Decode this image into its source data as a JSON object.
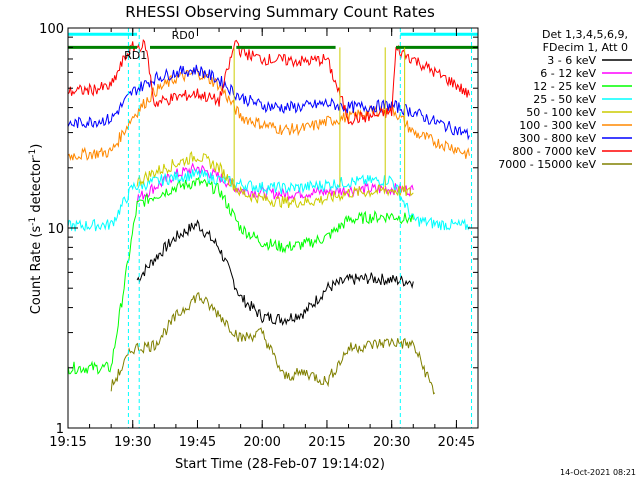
{
  "chart_data": {
    "type": "line",
    "title": "RHESSI Observing Summary Count Rates",
    "xlabel": "Start Time (28-Feb-07 19:14:02)",
    "ylabel": "Count Rate (s",
    "ylabel_sup": "-1",
    "ylabel_tail": " detector",
    "ylabel_tail_sup": "-1",
    "ylabel_close": ")",
    "y_scale": "log",
    "ylim": [
      1,
      100
    ],
    "xlim": [
      "19:15",
      "20:50"
    ],
    "x_ticks": [
      "19:15",
      "19:30",
      "19:45",
      "20:00",
      "20:15",
      "20:30",
      "20:45"
    ],
    "y_ticks": [
      "1",
      "10",
      "100"
    ],
    "footer_date": "14-Oct-2021 08:21",
    "info_lines": [
      "Det 1,3,4,5,6,9,",
      "FDecim 1, Att 0"
    ],
    "annotations": [
      {
        "text": "RD0",
        "x": "19:39",
        "y": 88,
        "color": "#008000"
      },
      {
        "text": "RD1",
        "x": "19:28",
        "y": 70,
        "color": "#008000"
      }
    ],
    "flags": {
      "saa_bar": {
        "color": "#00ffff",
        "y": 93,
        "segments": [
          [
            "19:15",
            "19:31"
          ],
          [
            "20:32",
            "20:50"
          ]
        ]
      },
      "night_bar": {
        "color": "#008000",
        "y": 80,
        "segments": [
          [
            "19:15",
            "19:31"
          ],
          [
            "19:34",
            "19:53"
          ],
          [
            "19:54",
            "20:17"
          ],
          [
            "20:31",
            "20:50"
          ]
        ]
      },
      "vlines_cyan": [
        "19:29",
        "19:31.5",
        "20:32",
        "20:48.5"
      ],
      "vlines_orange": [
        "19:53.5",
        "20:18",
        "20:28.5",
        "20:33"
      ]
    },
    "series": [
      {
        "name": "3 - 6 keV",
        "color": "#000000",
        "x": [
          "19:31",
          "19:35",
          "19:40",
          "19:45",
          "19:50",
          "19:55",
          "20:00",
          "20:05",
          "20:10",
          "20:15",
          "20:20",
          "20:25",
          "20:30",
          "20:35"
        ],
        "y": [
          5.5,
          7,
          9,
          10.5,
          8,
          4.5,
          3.6,
          3.5,
          3.8,
          5,
          5.5,
          5.6,
          5.5,
          5.4
        ]
      },
      {
        "name": "6 - 12 keV",
        "color": "#ff00ff",
        "x": [
          "19:31",
          "19:35",
          "19:40",
          "19:45",
          "19:50",
          "19:55",
          "20:00",
          "20:05",
          "20:10",
          "20:15",
          "20:20",
          "20:25",
          "20:30",
          "20:35"
        ],
        "y": [
          14,
          16,
          18.5,
          20,
          18,
          15.5,
          15,
          14.8,
          15,
          15.2,
          15.5,
          15.6,
          15.7,
          15.5
        ]
      },
      {
        "name": "12 - 25 keV",
        "color": "#00ff00",
        "x": [
          "19:15",
          "19:25",
          "19:31",
          "19:35",
          "19:40",
          "19:45",
          "19:50",
          "19:55",
          "20:00",
          "20:05",
          "20:10",
          "20:15",
          "20:20",
          "20:25",
          "20:30",
          "20:35"
        ],
        "y": [
          2,
          2,
          13,
          14.5,
          16,
          17,
          15.5,
          10,
          8.5,
          8,
          8.3,
          9,
          11,
          11.3,
          11.5,
          11
        ]
      },
      {
        "name": "25 - 50 keV",
        "color": "#00ffff",
        "x": [
          "19:15",
          "19:20",
          "19:25",
          "19:30",
          "19:35",
          "19:40",
          "19:45",
          "19:50",
          "19:55",
          "20:00",
          "20:05",
          "20:10",
          "20:15",
          "20:20",
          "20:25",
          "20:30",
          "20:35",
          "20:40",
          "20:45",
          "20:48"
        ],
        "y": [
          10.2,
          10.3,
          10.4,
          16,
          17,
          18,
          18.5,
          17.5,
          16.5,
          16,
          15.8,
          16,
          16.5,
          17,
          17.2,
          17.5,
          11,
          10.5,
          10.3,
          10.2
        ]
      },
      {
        "name": "50 - 100 keV",
        "color": "#cccc00",
        "x": [
          "19:31",
          "19:35",
          "19:40",
          "19:45",
          "19:50",
          "19:55",
          "20:00",
          "20:05",
          "20:10",
          "20:15",
          "20:20",
          "20:25",
          "20:30",
          "20:35"
        ],
        "y": [
          17,
          19,
          21,
          23,
          20,
          15,
          14,
          13.5,
          13.5,
          14,
          15,
          15.2,
          15.5,
          15
        ]
      },
      {
        "name": "100 - 300 keV",
        "color": "#ff8800",
        "x": [
          "19:15",
          "19:20",
          "19:25",
          "19:30",
          "19:35",
          "19:40",
          "19:45",
          "19:50",
          "19:55",
          "20:00",
          "20:05",
          "20:10",
          "20:15",
          "20:20",
          "20:25",
          "20:30",
          "20:35",
          "20:40",
          "20:45",
          "20:48"
        ],
        "y": [
          23,
          23.5,
          24,
          36,
          48,
          56,
          60,
          52,
          36,
          33,
          31,
          31.5,
          34,
          36,
          38,
          40,
          30,
          27,
          25,
          23
        ]
      },
      {
        "name": "300 - 800 keV",
        "color": "#0000ff",
        "x": [
          "19:15",
          "19:20",
          "19:25",
          "19:30",
          "19:35",
          "19:40",
          "19:45",
          "19:50",
          "19:55",
          "20:00",
          "20:05",
          "20:10",
          "20:15",
          "20:20",
          "20:25",
          "20:30",
          "20:35",
          "20:40",
          "20:45",
          "20:48"
        ],
        "y": [
          33,
          34,
          35,
          48,
          56,
          60,
          62,
          55,
          45,
          41,
          40,
          40.5,
          42,
          40,
          40.5,
          41,
          38,
          34,
          31,
          29
        ]
      },
      {
        "name": "800 - 7000 keV",
        "color": "#ff0000",
        "x": [
          "19:15",
          "19:20",
          "19:25",
          "19:28",
          "19:30",
          "19:33",
          "19:35",
          "19:40",
          "19:45",
          "19:50",
          "19:54",
          "19:55",
          "20:00",
          "20:05",
          "20:10",
          "20:15",
          "20:20",
          "20:25",
          "20:30",
          "20:31",
          "20:35",
          "20:40",
          "20:45",
          "20:48"
        ],
        "y": [
          48,
          49,
          51,
          70,
          80,
          82,
          42,
          45,
          47,
          43,
          88,
          76,
          70,
          69,
          68,
          70,
          35,
          36,
          38,
          78,
          70,
          60,
          52,
          46
        ]
      },
      {
        "name": "7000 - 15000 keV",
        "color": "#808000",
        "x": [
          "19:25",
          "19:30",
          "19:35",
          "19:40",
          "19:45",
          "19:50",
          "19:55",
          "20:00",
          "20:05",
          "20:10",
          "20:15",
          "20:20",
          "20:25",
          "20:30",
          "20:35",
          "20:40"
        ],
        "y": [
          1.6,
          2.5,
          2.6,
          3.6,
          4.6,
          3.7,
          2.8,
          3,
          1.8,
          1.9,
          1.7,
          2.5,
          2.6,
          2.7,
          2.6,
          1.5
        ]
      }
    ]
  }
}
